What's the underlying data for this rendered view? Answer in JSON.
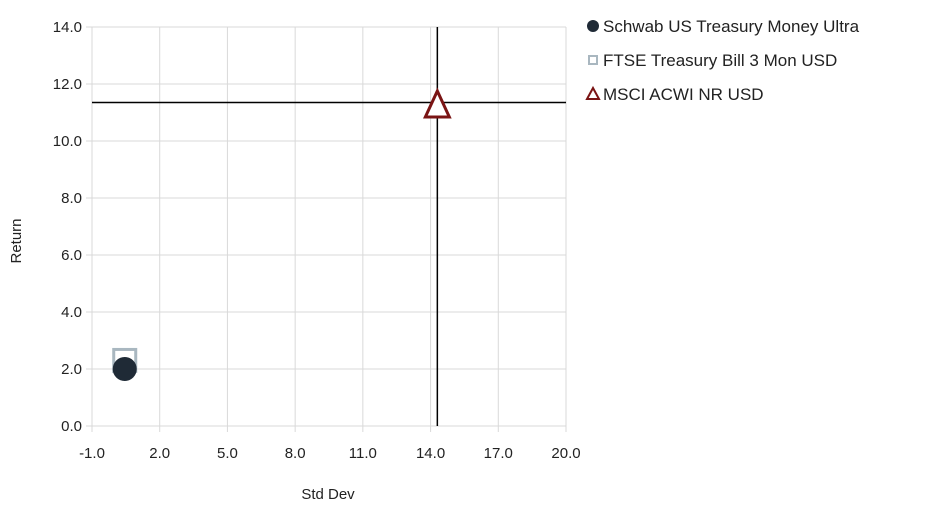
{
  "chart_data": {
    "type": "scatter",
    "xlabel": "Std Dev",
    "ylabel": "Return",
    "xlim": [
      -1.0,
      20.0
    ],
    "ylim": [
      0.0,
      14.0
    ],
    "xticks": [
      "-1.0",
      "2.0",
      "5.0",
      "8.0",
      "11.0",
      "14.0",
      "17.0",
      "20.0"
    ],
    "yticks": [
      "0.0",
      "2.0",
      "4.0",
      "6.0",
      "8.0",
      "10.0",
      "12.0",
      "14.0"
    ],
    "grid": true,
    "legend_position": "top-right",
    "crosshair": {
      "x": 14.3,
      "y": 11.35
    },
    "series": [
      {
        "name": "Schwab US Treasury Money Ultra",
        "marker": "circle",
        "color": "#1f2a36",
        "x": 0.45,
        "y": 2.0
      },
      {
        "name": "FTSE Treasury Bill 3 Mon USD",
        "marker": "square",
        "color": "#a9b7c0",
        "x": 0.45,
        "y": 2.3
      },
      {
        "name": "MSCI ACWI NR USD",
        "marker": "triangle",
        "color": "#7a1414",
        "x": 14.3,
        "y": 11.3
      }
    ]
  }
}
